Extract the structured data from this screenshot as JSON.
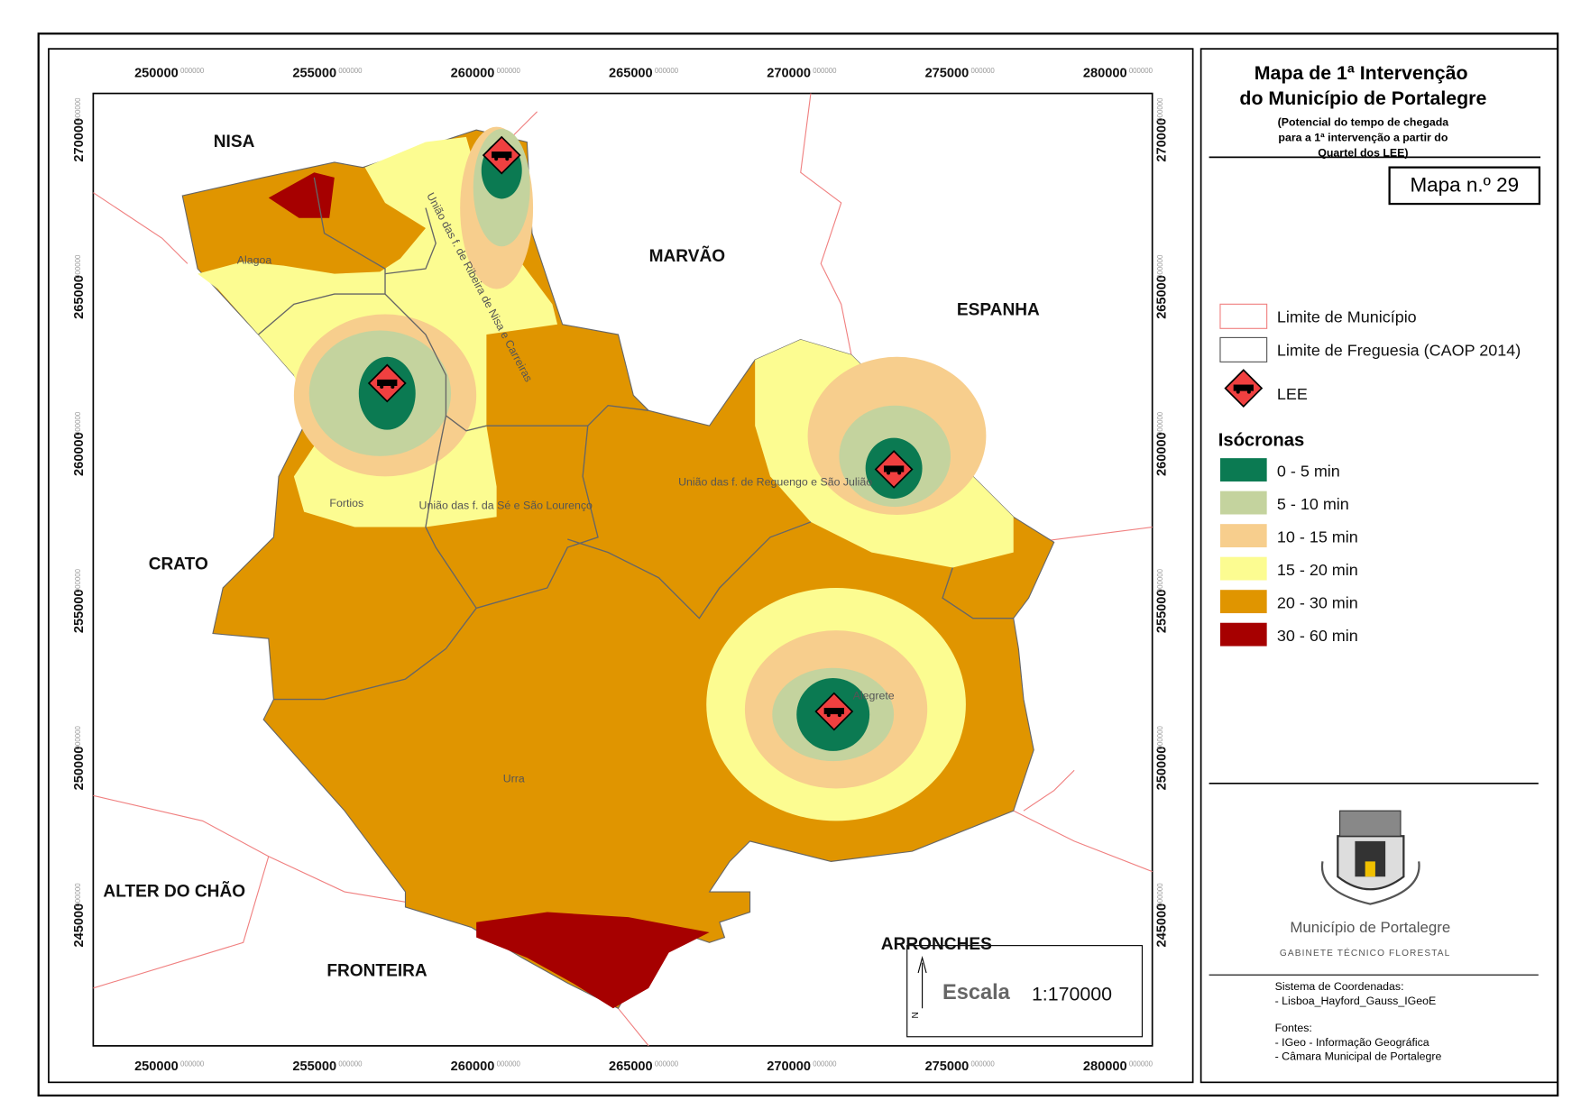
{
  "map": {
    "x_ticks": [
      "250000",
      "255000",
      "260000",
      "265000",
      "270000",
      "275000",
      "280000"
    ],
    "y_ticks": [
      "270000",
      "265000",
      "260000",
      "255000",
      "250000",
      "245000"
    ],
    "tick_suffix": "000000",
    "region_labels": [
      "NISA",
      "MARVÃO",
      "ESPANHA",
      "CRATO",
      "ALTER DO CHÃO",
      "FRONTEIRA",
      "ARRONCHES"
    ],
    "parish_labels": [
      "Alagoa",
      "União das f. de Ribeira de Nisa e Carreiras",
      "Fortios",
      "União das f. da Sé e São Lourenço",
      "União das f. de Reguengo e São Julião",
      "Alegrete",
      "Urra"
    ],
    "scale": {
      "label": "Escala",
      "value": "1:170000",
      "north": "N"
    }
  },
  "legend": {
    "title": [
      "Mapa de 1ª Intervenção",
      "do Município de Portalegre"
    ],
    "subtitle": [
      "(Potencial do tempo de chegada",
      "para a 1ª intervenção a partir do",
      "Quartel dos LEE)"
    ],
    "map_number": "Mapa n.º 29",
    "items": [
      "Limite de Município",
      "Limite de Freguesia (CAOP 2014)",
      "LEE"
    ],
    "isochrones_title": "Isócronas",
    "isochrones": [
      {
        "label": "0 - 5 min",
        "color": "#0b7a52"
      },
      {
        "label": "5 - 10 min",
        "color": "#c4d39e"
      },
      {
        "label": "10 - 15 min",
        "color": "#f7ce8d"
      },
      {
        "label": "15 - 20 min",
        "color": "#fcfc91"
      },
      {
        "label": "20 - 30 min",
        "color": "#e09500"
      },
      {
        "label": "30 - 60 min",
        "color": "#a60000"
      }
    ]
  },
  "footer": {
    "municipality": "Município de Portalegre",
    "office": "GABINETE TÉCNICO FLORESTAL",
    "coord_system_title": "Sistema de Coordenadas:",
    "coord_system": "- Lisboa_Hayford_Gauss_IGeoE",
    "sources_title": "Fontes:",
    "sources": [
      "- IGeo - Informação Geográfica",
      "- Câmara Municipal de Portalegre"
    ]
  }
}
